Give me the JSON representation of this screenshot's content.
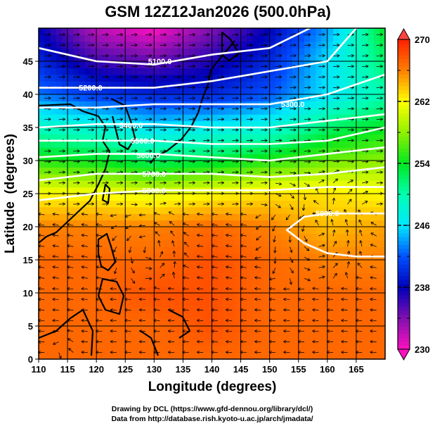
{
  "chart_data": {
    "type": "heatmap",
    "title": "GSM 12Z12Jan2026 (500.0hPa)",
    "xlabel": "Longitude (degrees)",
    "ylabel": "Latitude  (degrees)",
    "xlim": [
      110,
      170
    ],
    "ylim": [
      0,
      50
    ],
    "xticks": [
      110,
      115,
      120,
      125,
      130,
      135,
      140,
      145,
      150,
      155,
      160,
      165
    ],
    "yticks": [
      0,
      5,
      10,
      15,
      20,
      25,
      30,
      35,
      40,
      45
    ],
    "grid": true,
    "colorbar": {
      "range": [
        230,
        270
      ],
      "ticks": [
        230,
        238,
        246,
        254,
        262,
        270
      ],
      "extend": "both",
      "stops": [
        {
          "v": 230,
          "c": "#ff10c0"
        },
        {
          "v": 234,
          "c": "#8010b0"
        },
        {
          "v": 238,
          "c": "#0000b8"
        },
        {
          "v": 242,
          "c": "#0050ff"
        },
        {
          "v": 246,
          "c": "#00e8ff"
        },
        {
          "v": 250,
          "c": "#00ffb0"
        },
        {
          "v": 254,
          "c": "#00e820"
        },
        {
          "v": 258,
          "c": "#90f000"
        },
        {
          "v": 262,
          "c": "#ffff00"
        },
        {
          "v": 266,
          "c": "#ff8000"
        },
        {
          "v": 270,
          "c": "#ff2000"
        }
      ]
    },
    "temperature_grid": {
      "lons": [
        110,
        120,
        130,
        140,
        150,
        160,
        170
      ],
      "lats": [
        50,
        45,
        40,
        35,
        30,
        25,
        20,
        15,
        10,
        5,
        0
      ],
      "values": [
        [
          238,
          232,
          230,
          234,
          238,
          244,
          254
        ],
        [
          240,
          236,
          235,
          237,
          240,
          246,
          252
        ],
        [
          243,
          241,
          240,
          240,
          242,
          246,
          250
        ],
        [
          249,
          248,
          246,
          247,
          248,
          252,
          254
        ],
        [
          255,
          254,
          252,
          253,
          255,
          257,
          258
        ],
        [
          262,
          262,
          261,
          262,
          263,
          263,
          262
        ],
        [
          266,
          266,
          266,
          267,
          266,
          264,
          265
        ],
        [
          267,
          267,
          267,
          268,
          267,
          266,
          266
        ],
        [
          267,
          267,
          268,
          268,
          267,
          267,
          267
        ],
        [
          267,
          267,
          267,
          268,
          267,
          267,
          267
        ],
        [
          267,
          267,
          267,
          267,
          267,
          267,
          267
        ]
      ]
    },
    "contours": [
      {
        "label": "5100.0",
        "label_at": [
          131,
          45
        ],
        "points": [
          [
            110,
            47
          ],
          [
            120,
            45
          ],
          [
            130,
            44.5
          ],
          [
            140,
            46
          ],
          [
            150,
            47
          ],
          [
            157,
            50
          ]
        ]
      },
      {
        "label": "5200.0",
        "label_at": [
          119,
          41
        ],
        "points": [
          [
            110,
            41
          ],
          [
            120,
            41
          ],
          [
            130,
            41
          ],
          [
            140,
            42
          ],
          [
            150,
            43.5
          ],
          [
            160,
            45
          ],
          [
            165,
            50
          ]
        ]
      },
      {
        "label": "5300.0",
        "label_at": [
          154,
          38.5
        ],
        "points": [
          [
            110,
            38
          ],
          [
            120,
            38
          ],
          [
            130,
            38.5
          ],
          [
            140,
            38.5
          ],
          [
            150,
            38.5
          ],
          [
            160,
            40
          ],
          [
            170,
            43
          ]
        ]
      },
      {
        "label": "5400.0",
        "label_at": [
          126,
          35.3
        ],
        "points": [
          [
            110,
            35
          ],
          [
            120,
            35.5
          ],
          [
            130,
            35.5
          ],
          [
            140,
            35
          ],
          [
            150,
            35
          ],
          [
            160,
            36
          ],
          [
            170,
            37
          ]
        ]
      },
      {
        "label": "5500.0",
        "label_at": [
          128,
          33
        ],
        "points": [
          [
            110,
            33
          ],
          [
            120,
            33
          ],
          [
            130,
            33
          ],
          [
            140,
            32.5
          ],
          [
            150,
            32.5
          ],
          [
            160,
            33
          ],
          [
            170,
            35
          ]
        ]
      },
      {
        "label": "5600.0",
        "label_at": [
          129,
          30.8
        ],
        "points": [
          [
            110,
            30.5
          ],
          [
            120,
            31
          ],
          [
            130,
            31
          ],
          [
            140,
            30.5
          ],
          [
            150,
            30
          ],
          [
            160,
            31
          ],
          [
            170,
            32
          ]
        ]
      },
      {
        "label": "5700.0",
        "label_at": [
          130,
          28
        ],
        "points": [
          [
            110,
            27
          ],
          [
            120,
            28
          ],
          [
            130,
            28
          ],
          [
            140,
            28
          ],
          [
            150,
            27.5
          ],
          [
            160,
            28
          ],
          [
            170,
            29
          ]
        ]
      },
      {
        "label": "5800.0",
        "label_at": [
          130,
          25.5
        ],
        "points": [
          [
            110,
            24
          ],
          [
            120,
            25
          ],
          [
            130,
            25.5
          ],
          [
            140,
            25.5
          ],
          [
            150,
            25.5
          ],
          [
            160,
            26
          ],
          [
            170,
            26
          ]
        ]
      },
      {
        "label": "5900.0",
        "label_at": [
          160,
          22
        ],
        "points": [
          [
            170,
            22
          ],
          [
            165,
            22
          ],
          [
            160,
            22
          ],
          [
            156,
            21.5
          ],
          [
            153,
            19.5
          ],
          [
            156,
            17.5
          ],
          [
            160,
            16
          ],
          [
            165,
            15.5
          ],
          [
            170,
            15.5
          ]
        ]
      }
    ]
  },
  "footer": {
    "line1": "Drawing by DCL (https://www.gfd-dennou.org/library/dcl/)",
    "line2": "Data from http://database.rish.kyoto-u.ac.jp/arch/jmadata/"
  }
}
